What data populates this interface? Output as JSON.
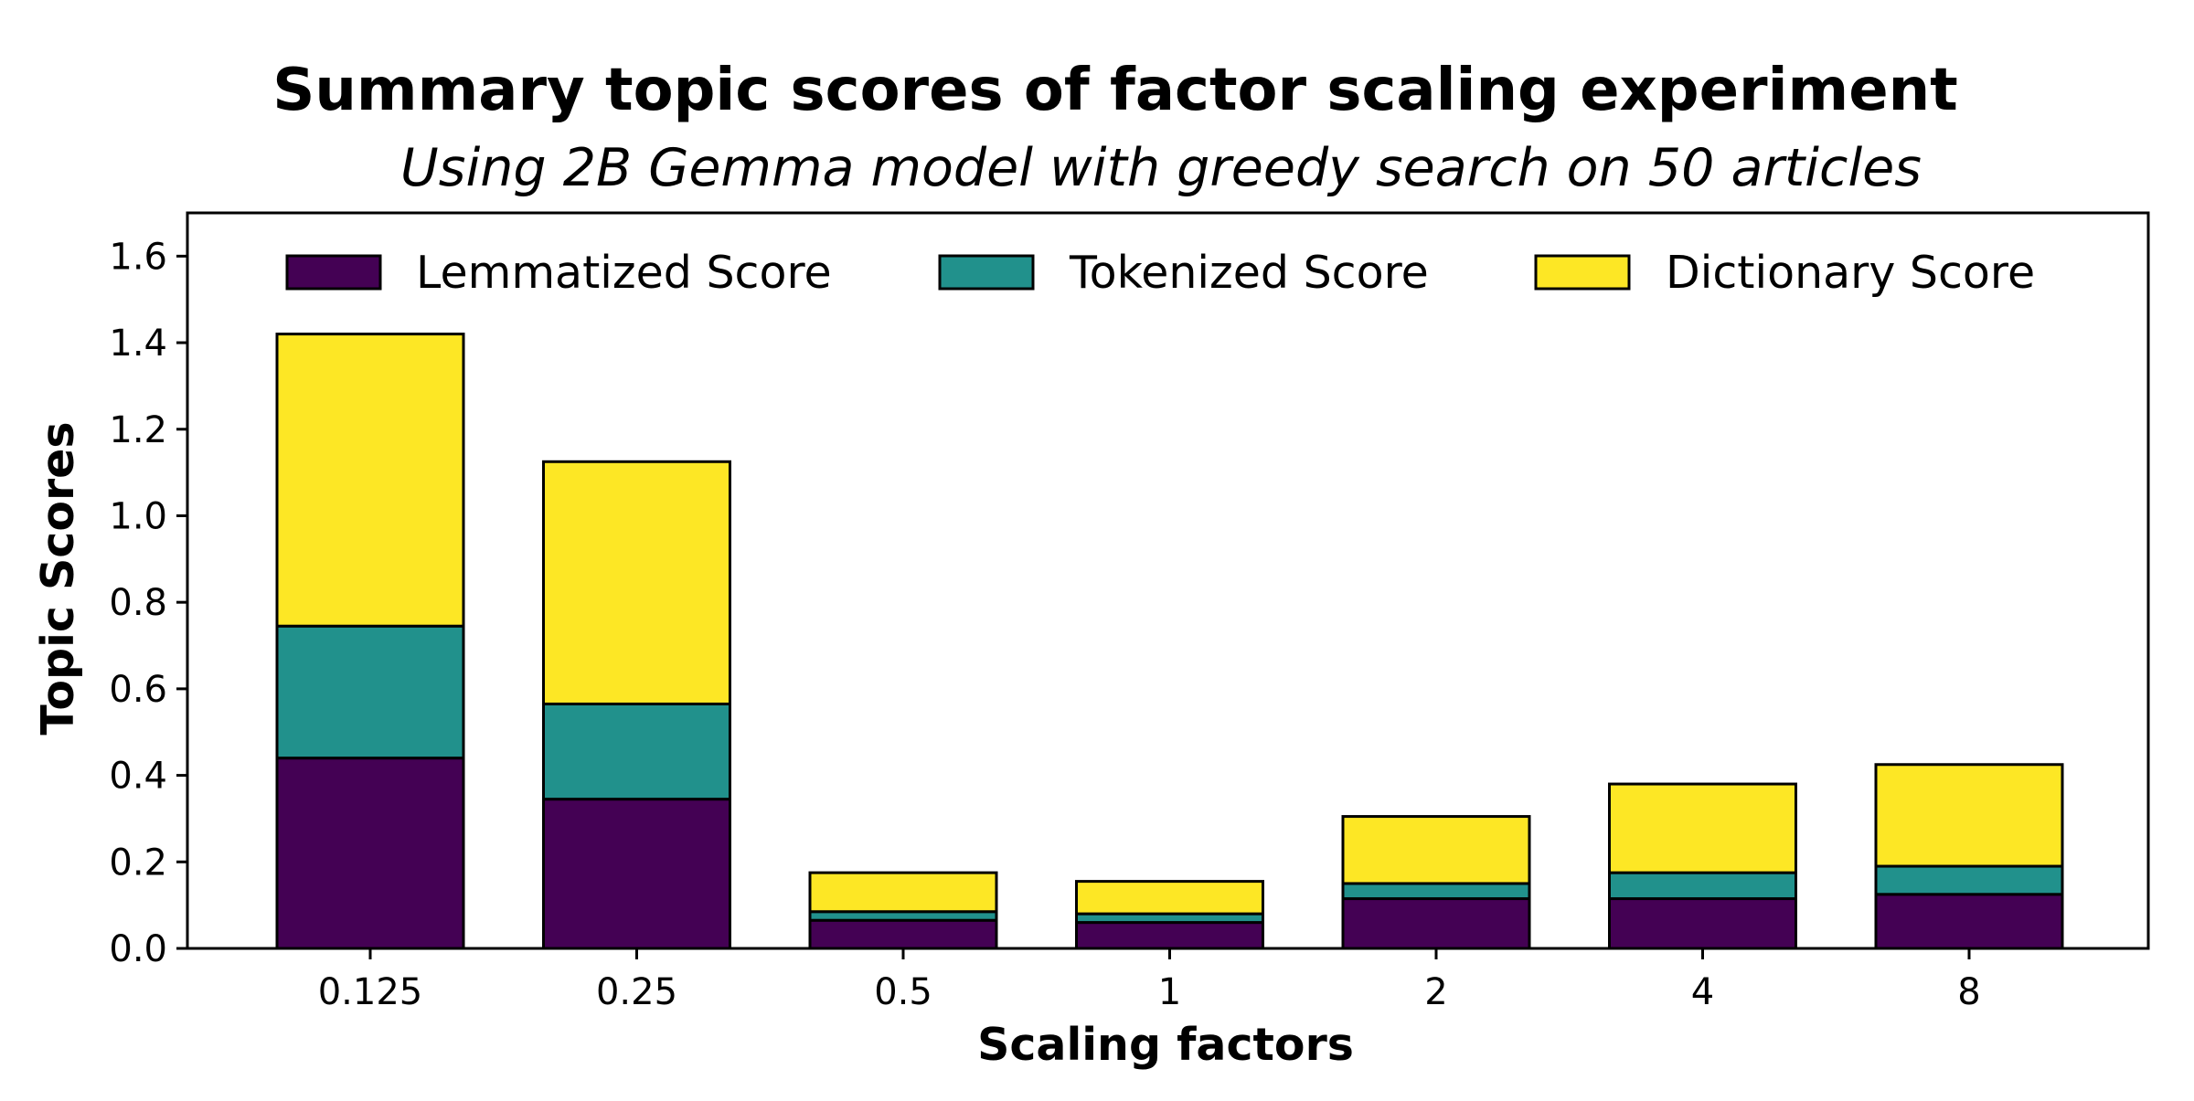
{
  "chart_data": {
    "type": "bar",
    "stacked": true,
    "title": "Summary topic scores of factor scaling experiment",
    "subtitle": "Using 2B Gemma model with greedy search on 50 articles",
    "xlabel": "Scaling factors",
    "ylabel": "Topic Scores",
    "categories": [
      "0.125",
      "0.25",
      "0.5",
      "1",
      "2",
      "4",
      "8"
    ],
    "ylim": [
      0,
      1.7
    ],
    "yticks": [
      "0.0",
      "0.2",
      "0.4",
      "0.6",
      "0.8",
      "1.0",
      "1.2",
      "1.4",
      "1.6"
    ],
    "grid": false,
    "legend_position": "top",
    "series": [
      {
        "name": "Lemmatized Score",
        "color": "#440154",
        "values": [
          0.44,
          0.345,
          0.065,
          0.06,
          0.115,
          0.115,
          0.125
        ]
      },
      {
        "name": "Tokenized Score",
        "color": "#21918c",
        "values": [
          0.305,
          0.22,
          0.02,
          0.02,
          0.035,
          0.06,
          0.065
        ]
      },
      {
        "name": "Dictionary Score",
        "color": "#fde725",
        "values": [
          0.675,
          0.56,
          0.09,
          0.075,
          0.155,
          0.205,
          0.235
        ]
      }
    ]
  }
}
